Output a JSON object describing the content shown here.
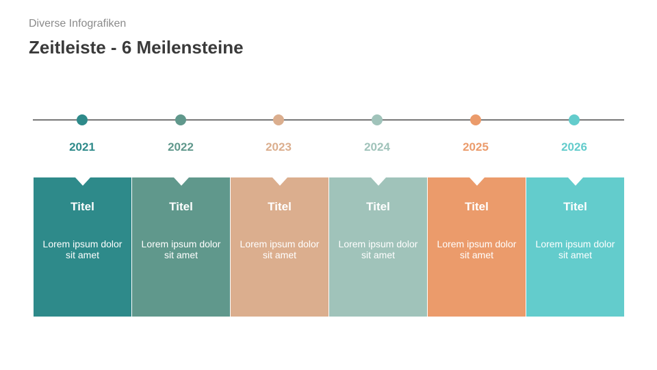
{
  "header": {
    "subtitle": "Diverse Infografiken",
    "title": "Zeitleiste - 6 Meilensteine"
  },
  "milestones": [
    {
      "year": "2021",
      "title": "Titel",
      "text": "Lorem ipsum dolor sit amet",
      "color": "#2E8A8A"
    },
    {
      "year": "2022",
      "title": "Titel",
      "text": "Lorem ipsum dolor sit amet",
      "color": "#60988C"
    },
    {
      "year": "2023",
      "title": "Titel",
      "text": "Lorem ipsum dolor sit amet",
      "color": "#DBAE8E"
    },
    {
      "year": "2024",
      "title": "Titel",
      "text": "Lorem ipsum dolor sit amet",
      "color": "#A0C3BA"
    },
    {
      "year": "2025",
      "title": "Titel",
      "text": "Lorem ipsum dolor sit amet",
      "color": "#EB9B6B"
    },
    {
      "year": "2026",
      "title": "Titel",
      "text": "Lorem ipsum dolor sit amet",
      "color": "#63CCCC"
    }
  ]
}
